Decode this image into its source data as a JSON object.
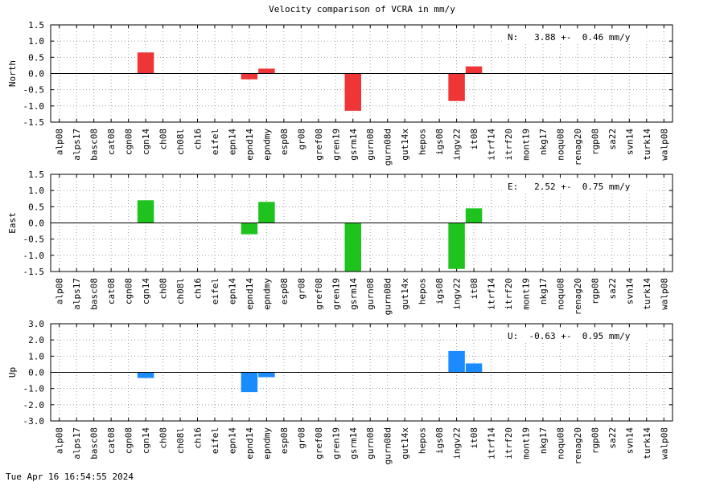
{
  "title": "Velocity comparison of VCRA in mm/y",
  "timestamp": "Tue Apr 16 16:54:55 2024",
  "chart_data": [
    {
      "type": "bar",
      "ylabel": "North",
      "annotation": "N:   3.88 +-  0.46 mm/y",
      "ylim": [
        -1.5,
        1.5
      ],
      "yticks": [
        "1.5",
        "1.0",
        "0.5",
        "0.0",
        "-0.5",
        "-1.0",
        "-1.5"
      ],
      "color": "#ef3636",
      "grid": true,
      "categories": [
        "alp08",
        "alps17",
        "basc08",
        "cat08",
        "cgn08",
        "cgn14",
        "ch08",
        "ch08l",
        "ch16",
        "eifel",
        "epn14",
        "epnd14",
        "epndmy",
        "esp08",
        "gr08",
        "gref08",
        "gren19",
        "gsrm14",
        "gurn08",
        "gurn08d",
        "gut14x",
        "hepos",
        "igs08",
        "ingv22",
        "it08",
        "itrf14",
        "itrf20",
        "mont19",
        "nkg17",
        "noqu08",
        "renag20",
        "rgp08",
        "sa22",
        "svn14",
        "turk14",
        "walp08"
      ],
      "values": [
        null,
        null,
        null,
        null,
        null,
        0.65,
        null,
        null,
        null,
        null,
        null,
        -0.18,
        0.15,
        null,
        null,
        null,
        null,
        -1.15,
        null,
        null,
        null,
        null,
        null,
        -0.85,
        0.22,
        null,
        null,
        null,
        null,
        null,
        null,
        null,
        null,
        null,
        null,
        null
      ]
    },
    {
      "type": "bar",
      "ylabel": "East",
      "annotation": "E:   2.52 +-  0.75 mm/y",
      "ylim": [
        -1.5,
        1.5
      ],
      "yticks": [
        "1.5",
        "1.0",
        "0.5",
        "0.0",
        "-0.5",
        "-1.0",
        "-1.5"
      ],
      "color": "#1ec31e",
      "grid": true,
      "categories": [
        "alp08",
        "alps17",
        "basc08",
        "cat08",
        "cgn08",
        "cgn14",
        "ch08",
        "ch08l",
        "ch16",
        "eifel",
        "epn14",
        "epnd14",
        "epndmy",
        "esp08",
        "gr08",
        "gref08",
        "gren19",
        "gsrm14",
        "gurn08",
        "gurn08d",
        "gut14x",
        "hepos",
        "igs08",
        "ingv22",
        "it08",
        "itrf14",
        "itrf20",
        "mont19",
        "nkg17",
        "noqu08",
        "renag20",
        "rgp08",
        "sa22",
        "svn14",
        "turk14",
        "walp08"
      ],
      "values": [
        null,
        null,
        null,
        null,
        null,
        0.7,
        null,
        null,
        null,
        null,
        null,
        -0.35,
        0.65,
        null,
        null,
        null,
        null,
        -1.5,
        null,
        null,
        null,
        null,
        null,
        -1.42,
        0.45,
        null,
        null,
        null,
        null,
        null,
        null,
        null,
        null,
        null,
        null,
        null
      ]
    },
    {
      "type": "bar",
      "ylabel": "Up",
      "annotation": "U:  -0.63 +-  0.95 mm/y",
      "ylim": [
        -3.0,
        3.0
      ],
      "yticks": [
        "3.0",
        "2.0",
        "1.0",
        "0.0",
        "-1.0",
        "-2.0",
        "-3.0"
      ],
      "color": "#1a8cff",
      "grid": true,
      "categories": [
        "alp08",
        "alps17",
        "basc08",
        "cat08",
        "cgn08",
        "cgn14",
        "ch08",
        "ch08l",
        "ch16",
        "eifel",
        "epn14",
        "epnd14",
        "epndmy",
        "esp08",
        "gr08",
        "gref08",
        "gren19",
        "gsrm14",
        "gurn08",
        "gurn08d",
        "gut14x",
        "hepos",
        "igs08",
        "ingv22",
        "it08",
        "itrf14",
        "itrf20",
        "mont19",
        "nkg17",
        "noqu08",
        "renag20",
        "rgp08",
        "sa22",
        "svn14",
        "turk14",
        "walp08"
      ],
      "values": [
        null,
        null,
        null,
        null,
        null,
        -0.35,
        null,
        null,
        null,
        null,
        null,
        -1.22,
        -0.3,
        null,
        null,
        null,
        null,
        null,
        null,
        null,
        null,
        null,
        null,
        1.32,
        0.55,
        null,
        null,
        null,
        null,
        null,
        null,
        null,
        null,
        null,
        null,
        null
      ]
    }
  ]
}
